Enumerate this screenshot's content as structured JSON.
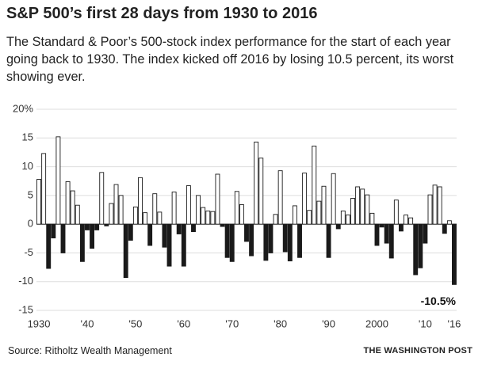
{
  "chart_data": {
    "type": "bar",
    "title": "S&P 500’s first 28 days from 1930 to 2016",
    "subtitle": "The Standard & Poor’s 500-stock index performance for the start of each year going back to 1930. The index kicked off 2016 by losing 10.5 percent, its worst showing ever.",
    "source": "Source: Ritholtz Wealth Management",
    "credit": "THE WASHINGTON POST",
    "annotation": "-10.5%",
    "x": [
      1930,
      1931,
      1932,
      1933,
      1934,
      1935,
      1936,
      1937,
      1938,
      1939,
      1940,
      1941,
      1942,
      1943,
      1944,
      1945,
      1946,
      1947,
      1948,
      1949,
      1950,
      1951,
      1952,
      1953,
      1954,
      1955,
      1956,
      1957,
      1958,
      1959,
      1960,
      1961,
      1962,
      1963,
      1964,
      1965,
      1966,
      1967,
      1968,
      1969,
      1970,
      1971,
      1972,
      1973,
      1974,
      1975,
      1976,
      1977,
      1978,
      1979,
      1980,
      1981,
      1982,
      1983,
      1984,
      1985,
      1986,
      1987,
      1988,
      1989,
      1990,
      1991,
      1992,
      1993,
      1994,
      1995,
      1996,
      1997,
      1998,
      1999,
      2000,
      2001,
      2002,
      2003,
      2004,
      2005,
      2006,
      2007,
      2008,
      2009,
      2010,
      2011,
      2012,
      2013,
      2014,
      2015,
      2016
    ],
    "values": [
      7.8,
      12.3,
      -7.7,
      -2.4,
      15.2,
      -5.0,
      7.4,
      5.8,
      3.3,
      -6.5,
      -1.0,
      -4.2,
      -1.0,
      9.0,
      -0.3,
      3.6,
      6.9,
      5.0,
      -9.3,
      -2.8,
      3.0,
      8.1,
      2.0,
      -3.7,
      5.3,
      2.1,
      -4.0,
      -7.3,
      5.6,
      -1.7,
      -7.3,
      6.7,
      -1.3,
      5.0,
      2.9,
      2.3,
      2.2,
      8.7,
      -0.4,
      -5.8,
      -6.5,
      5.7,
      3.4,
      -3.0,
      -5.5,
      14.3,
      11.5,
      -6.3,
      -5.0,
      1.7,
      9.3,
      -4.8,
      -6.4,
      3.2,
      -5.8,
      8.9,
      2.4,
      13.6,
      4.0,
      6.6,
      -5.8,
      8.8,
      -0.8,
      2.3,
      1.6,
      4.5,
      6.5,
      6.1,
      5.1,
      1.9,
      -3.7,
      -0.5,
      -3.3,
      -5.9,
      4.2,
      -1.2,
      1.6,
      1.1,
      -8.8,
      -7.6,
      -3.3,
      5.1,
      6.8,
      6.5,
      -1.6,
      0.6,
      -10.5
    ],
    "positive_color": "#ffffff",
    "negative_color": "#1a1a1a",
    "xlim": [
      1929.5,
      2016.5
    ],
    "xticks": [
      1930,
      {
        "value": 1940,
        "label": "'40"
      },
      {
        "value": 1950,
        "label": "'50"
      },
      {
        "value": 1960,
        "label": "'60"
      },
      {
        "value": 1970,
        "label": "'70"
      },
      {
        "value": 1980,
        "label": "'80"
      },
      {
        "value": 1990,
        "label": "'90"
      },
      2000,
      {
        "value": 2010,
        "label": "'10"
      },
      {
        "value": 2016,
        "label": "'16"
      }
    ],
    "ylim": [
      -15,
      20
    ],
    "yticks": [
      {
        "value": 20,
        "label": "20%"
      },
      15,
      10,
      5,
      0,
      -5,
      -10,
      -15
    ],
    "grid": true
  }
}
